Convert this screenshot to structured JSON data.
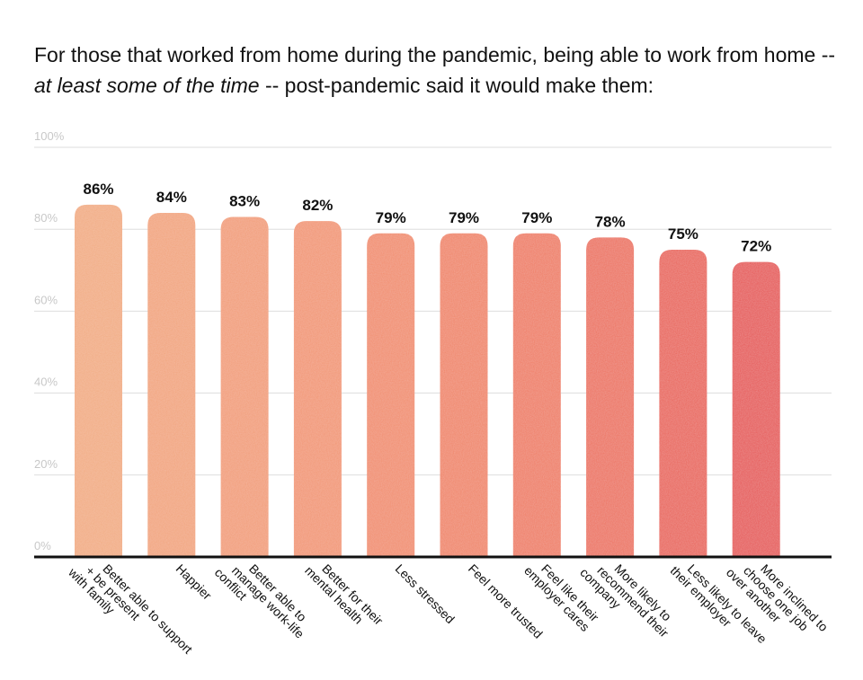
{
  "title": {
    "part1": "For those that worked from home during the pandemic, being able to work from home -- ",
    "emphasis": "at least some of the time",
    "part2": " -- post-pandemic said it would make them:"
  },
  "chart_data": {
    "type": "bar",
    "title": "For those that worked from home during the pandemic, being able to work from home -- at least some of the time -- post-pandemic said it would make them:",
    "categories": [
      "Better able to support + be present with family",
      "Happier",
      "Better able to manage work-life conflict",
      "Better for their mental health",
      "Less stressed",
      "Feel more trusted",
      "Feel like their employer cares",
      "More likely to recommend their company",
      "Less likely to leave their employer",
      "More inclined to choose one job over another"
    ],
    "category_lines": [
      [
        "Better able to support",
        "+ be present",
        "with family"
      ],
      [
        "Happier"
      ],
      [
        "Better able to",
        "manage work-life",
        "conflict"
      ],
      [
        "Better for their",
        "mental health"
      ],
      [
        "Less stressed"
      ],
      [
        "Feel more trusted"
      ],
      [
        "Feel like their",
        "employer cares"
      ],
      [
        "More likely to",
        "recommend their",
        "company"
      ],
      [
        "Less likely to leave",
        "their employer"
      ],
      [
        "More inclined to",
        "choose one job",
        "over another"
      ]
    ],
    "values": [
      86,
      84,
      83,
      82,
      79,
      79,
      79,
      78,
      75,
      72
    ],
    "value_labels": [
      "86%",
      "84%",
      "83%",
      "82%",
      "79%",
      "79%",
      "79%",
      "78%",
      "75%",
      "72%"
    ],
    "yticks": [
      0,
      20,
      40,
      60,
      80,
      100
    ],
    "ytick_labels": [
      "0%",
      "20%",
      "40%",
      "60%",
      "80%",
      "100%"
    ],
    "ylim": [
      0,
      100
    ],
    "xlabel": "",
    "ylabel": "",
    "grid": true,
    "legend": "none",
    "colors": [
      "#f2ac82",
      "#f2a47d",
      "#f29d78",
      "#f29673",
      "#f18d6d",
      "#f08568",
      "#ef7d63",
      "#ec725e",
      "#e96359",
      "#e65754"
    ],
    "baseline_color": "#111111",
    "grid_color": "#dddddd"
  }
}
